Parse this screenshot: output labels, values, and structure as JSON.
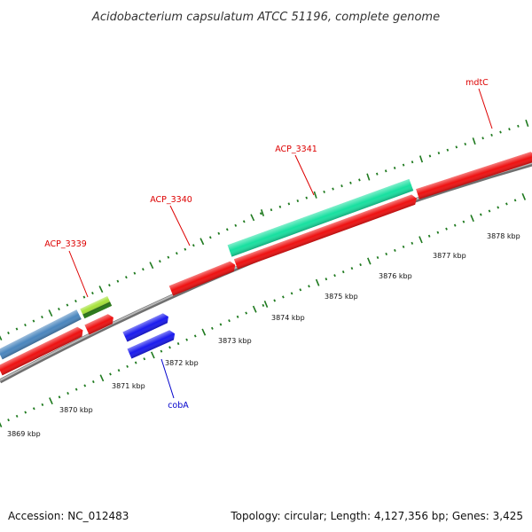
{
  "title": "Acidobacterium capsulatum ATCC 51196, complete genome",
  "footer": {
    "accession": "Accession: NC_012483",
    "summary": "Topology: circular; Length: 4,127,356 bp; Genes: 3,425"
  },
  "colors": {
    "backbone": "#8a8a8a",
    "tick": "#1f7a1f",
    "forward_gene": "#18e0a0",
    "reverse_gene": "#ee1111",
    "cobA": "#1a1aee",
    "light_green": "#a6e23a",
    "steel_blue": "#4a86be",
    "label_red": "#dd0000",
    "label_blue": "#0000cc"
  },
  "tick_labels": [
    "3869 kbp",
    "3870 kbp",
    "3871 kbp",
    "3872 kbp",
    "3873 kbp",
    "3874 kbp",
    "3875 kbp",
    "3876 kbp",
    "3877 kbp",
    "3878 kbp"
  ],
  "gene_labels": [
    "ACP_3339",
    "ACP_3340",
    "ACP_3341",
    "mdtC",
    "cobA"
  ]
}
